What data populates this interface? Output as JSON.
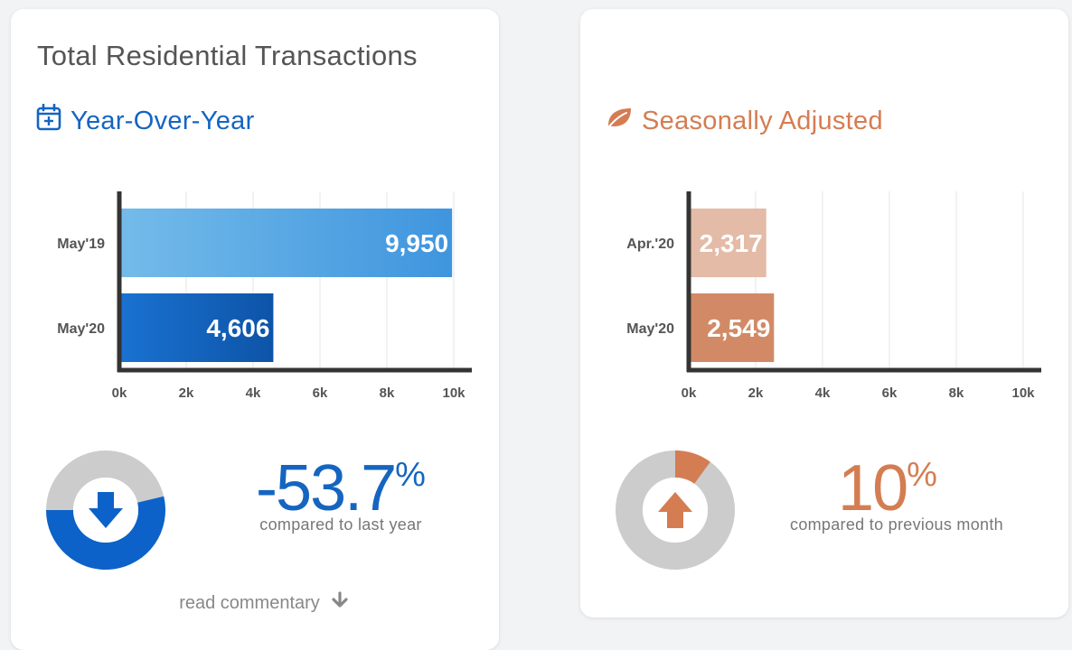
{
  "card_left": {
    "title": "Total Residential Transactions",
    "section_title": "Year-Over-Year",
    "section_icon": "calendar-plus-icon",
    "change": {
      "number": "-53.7",
      "symbol": "%",
      "direction": "down",
      "fraction": 0.537
    },
    "compare_text": "compared to last year",
    "commentary_label": "read commentary",
    "commentary_icon": "arrow-down-icon"
  },
  "card_right": {
    "section_title": "Seasonally Adjusted",
    "section_icon": "leaf-icon",
    "change": {
      "number": "10",
      "symbol": "%",
      "direction": "up",
      "fraction": 0.1
    },
    "compare_text": "compared to previous month"
  },
  "colors": {
    "blue_dark": "#1565c0",
    "blue_light": "#6fb8ea",
    "orange_dark": "#d28a66",
    "orange_light": "#e3bba6",
    "donut_gray": "#cccccc",
    "axis": "#333333"
  },
  "chart_data": [
    {
      "type": "bar",
      "orientation": "horizontal",
      "categories": [
        "May'19",
        "May'20"
      ],
      "values": [
        9950,
        4606
      ],
      "value_labels": [
        "9,950",
        "4,606"
      ],
      "xlim": [
        0,
        10000
      ],
      "x_ticks": [
        0,
        2000,
        4000,
        6000,
        8000,
        10000
      ],
      "x_tick_labels": [
        "0k",
        "2k",
        "4k",
        "6k",
        "8k",
        "10k"
      ],
      "grid": true
    },
    {
      "type": "bar",
      "orientation": "horizontal",
      "categories": [
        "Apr.'20",
        "May'20"
      ],
      "values": [
        2317,
        2549
      ],
      "value_labels": [
        "2,317",
        "2,549"
      ],
      "xlim": [
        0,
        10000
      ],
      "x_ticks": [
        0,
        2000,
        4000,
        6000,
        8000,
        10000
      ],
      "x_tick_labels": [
        "0k",
        "2k",
        "4k",
        "6k",
        "8k",
        "10k"
      ],
      "grid": true
    }
  ]
}
